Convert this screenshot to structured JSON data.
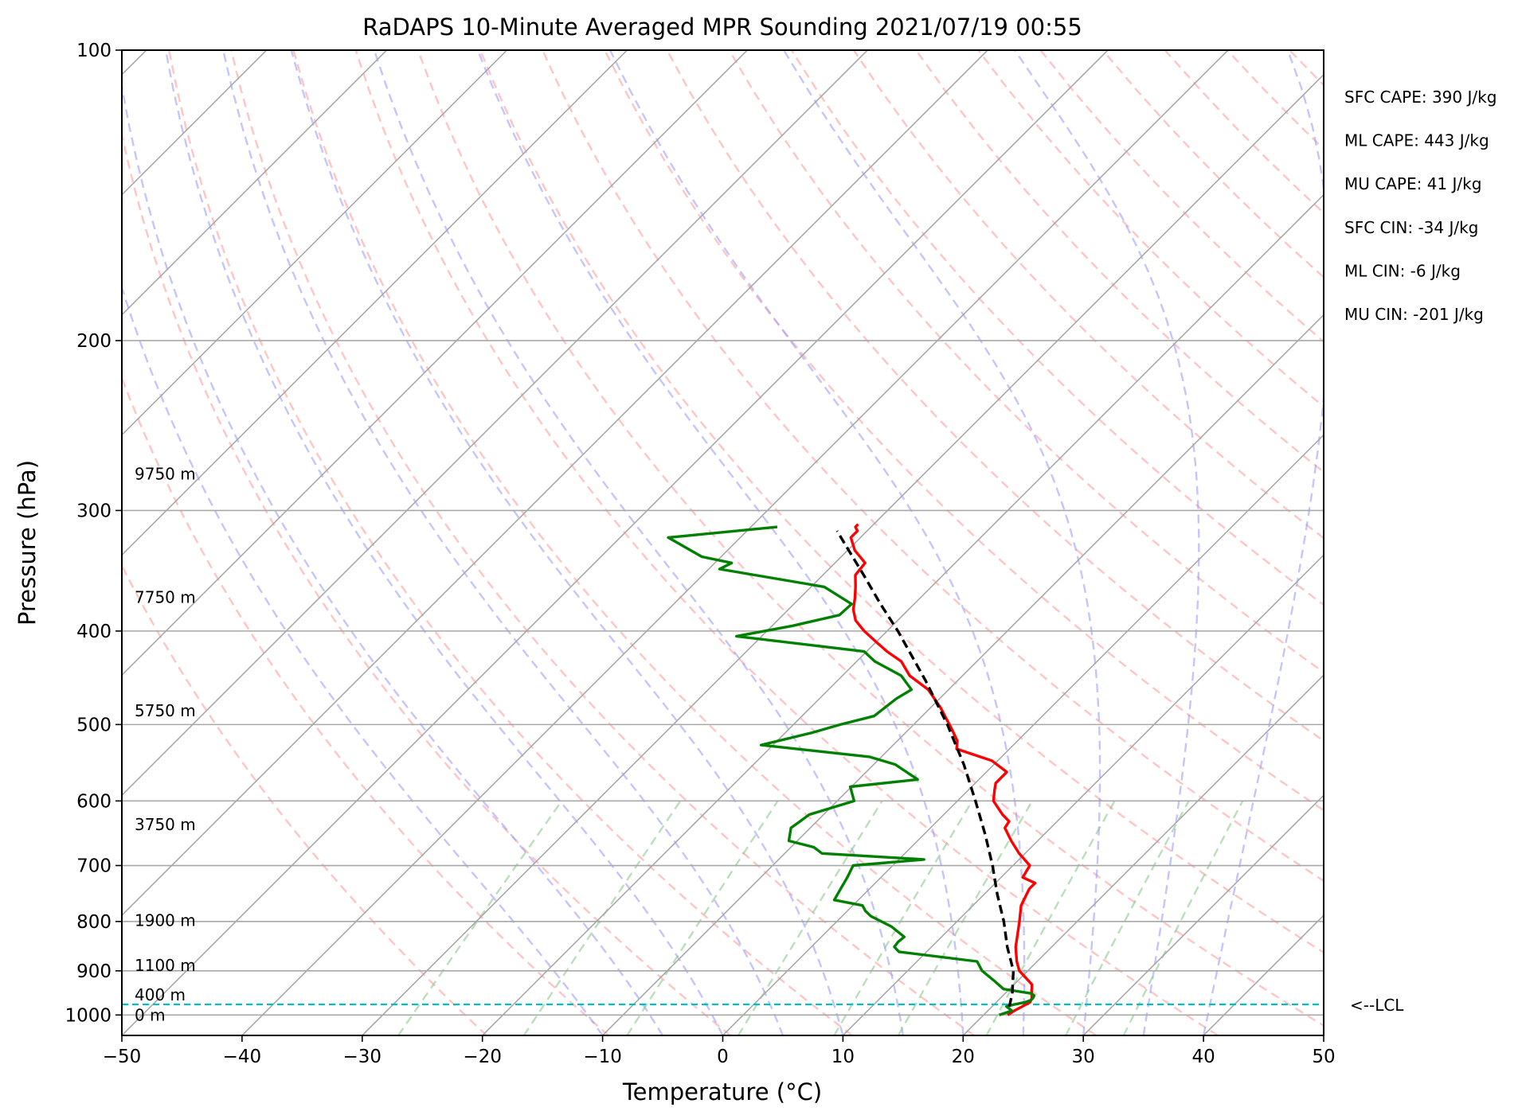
{
  "chart_data": {
    "type": "line",
    "title": "RaDAPS 10-Minute Averaged MPR Sounding 2021/07/19 00:55",
    "xlabel": "Temperature (°C)",
    "ylabel": "Pressure (hPa)",
    "xlim": [
      -50,
      50
    ],
    "ylim": [
      1050,
      100
    ],
    "y_scale": "log",
    "grid": true,
    "x_ticks": [
      -50,
      -40,
      -30,
      -20,
      -10,
      0,
      10,
      20,
      30,
      40,
      50
    ],
    "x_tick_labels": [
      "−50",
      "−40",
      "−30",
      "−20",
      "−10",
      "0",
      "10",
      "20",
      "30",
      "40",
      "50"
    ],
    "y_ticks": [
      100,
      200,
      300,
      400,
      500,
      600,
      700,
      800,
      900,
      1000
    ],
    "y_tick_labels": [
      "100",
      "200",
      "300",
      "400",
      "500",
      "600",
      "700",
      "800",
      "900",
      "1000"
    ],
    "series": [
      {
        "role": "temperature",
        "color": "#ff0000",
        "points": [
          [
            1000,
            22.0
          ],
          [
            990,
            22.2
          ],
          [
            980,
            22.5
          ],
          [
            970,
            22.8
          ],
          [
            960,
            22.6
          ],
          [
            950,
            22.2
          ],
          [
            930,
            21.5
          ],
          [
            900,
            19.3
          ],
          [
            880,
            18.3
          ],
          [
            850,
            17.0
          ],
          [
            800,
            15.2
          ],
          [
            770,
            14.0
          ],
          [
            740,
            13.3
          ],
          [
            730,
            13.3
          ],
          [
            720,
            11.8
          ],
          [
            700,
            11.4
          ],
          [
            680,
            9.5
          ],
          [
            660,
            7.8
          ],
          [
            640,
            6.2
          ],
          [
            630,
            6.0
          ],
          [
            620,
            4.9
          ],
          [
            600,
            3.0
          ],
          [
            585,
            2.2
          ],
          [
            575,
            1.7
          ],
          [
            560,
            1.7
          ],
          [
            545,
            -0.5
          ],
          [
            530,
            -4.4
          ],
          [
            520,
            -5.0
          ],
          [
            505,
            -6.5
          ],
          [
            480,
            -9.2
          ],
          [
            460,
            -11.7
          ],
          [
            445,
            -14.4
          ],
          [
            430,
            -16.3
          ],
          [
            420,
            -18.3
          ],
          [
            410,
            -20.1
          ],
          [
            400,
            -21.9
          ],
          [
            390,
            -23.5
          ],
          [
            380,
            -24.6
          ],
          [
            370,
            -25.4
          ],
          [
            360,
            -26.3
          ],
          [
            350,
            -27.3
          ],
          [
            340,
            -27.5
          ],
          [
            330,
            -29.4
          ],
          [
            320,
            -30.8
          ],
          [
            315,
            -30.8
          ],
          [
            312,
            -31.3
          ],
          [
            310,
            -31.3
          ]
        ]
      },
      {
        "role": "dewpoint",
        "color": "#008000",
        "points": [
          [
            1000,
            21.3
          ],
          [
            990,
            22.0
          ],
          [
            980,
            21.2
          ],
          [
            975,
            21.7
          ],
          [
            970,
            22.4
          ],
          [
            965,
            22.7
          ],
          [
            960,
            22.7
          ],
          [
            955,
            22.6
          ],
          [
            950,
            22.2
          ],
          [
            940,
            19.5
          ],
          [
            920,
            17.9
          ],
          [
            900,
            16.2
          ],
          [
            880,
            15.0
          ],
          [
            860,
            7.7
          ],
          [
            850,
            6.9
          ],
          [
            840,
            6.8
          ],
          [
            830,
            6.9
          ],
          [
            810,
            5.0
          ],
          [
            790,
            2.4
          ],
          [
            780,
            1.5
          ],
          [
            770,
            0.8
          ],
          [
            760,
            -2.0
          ],
          [
            740,
            -2.4
          ],
          [
            720,
            -2.8
          ],
          [
            700,
            -3.3
          ],
          [
            690,
            2.1
          ],
          [
            680,
            -6.9
          ],
          [
            670,
            -8.1
          ],
          [
            660,
            -10.7
          ],
          [
            640,
            -11.6
          ],
          [
            630,
            -11.4
          ],
          [
            620,
            -11.2
          ],
          [
            600,
            -8.6
          ],
          [
            580,
            -10.1
          ],
          [
            570,
            -5.1
          ],
          [
            550,
            -8.2
          ],
          [
            540,
            -11.0
          ],
          [
            525,
            -21.0
          ],
          [
            510,
            -17.8
          ],
          [
            500,
            -16.1
          ],
          [
            490,
            -14.0
          ],
          [
            470,
            -13.6
          ],
          [
            460,
            -13.1
          ],
          [
            445,
            -15.1
          ],
          [
            430,
            -18.5
          ],
          [
            420,
            -20.2
          ],
          [
            405,
            -32.1
          ],
          [
            395,
            -28.3
          ],
          [
            385,
            -25.3
          ],
          [
            375,
            -25.2
          ],
          [
            360,
            -28.9
          ],
          [
            345,
            -39.1
          ],
          [
            340,
            -38.6
          ],
          [
            335,
            -41.6
          ],
          [
            320,
            -46.0
          ],
          [
            312,
            -37.8
          ]
        ]
      },
      {
        "role": "parcel",
        "color": "#000000",
        "points": [
          [
            980,
            21.4
          ],
          [
            975,
            21.3
          ],
          [
            950,
            20.6
          ],
          [
            900,
            18.8
          ],
          [
            850,
            16.3
          ],
          [
            800,
            13.9
          ],
          [
            750,
            11.1
          ],
          [
            700,
            8.3
          ],
          [
            650,
            5.1
          ],
          [
            600,
            1.5
          ],
          [
            550,
            -2.5
          ],
          [
            500,
            -7.2
          ],
          [
            450,
            -12.7
          ],
          [
            400,
            -19.1
          ],
          [
            375,
            -22.8
          ],
          [
            350,
            -26.6
          ],
          [
            330,
            -29.9
          ],
          [
            315,
            -32.5
          ]
        ]
      }
    ],
    "lcl": {
      "pressure": 975,
      "label": "<--LCL",
      "color": "#00bfbf"
    },
    "height_labels": [
      {
        "pressure": 1000,
        "label": "0 m"
      },
      {
        "pressure": 953,
        "label": "400 m"
      },
      {
        "pressure": 888,
        "label": "1100 m"
      },
      {
        "pressure": 798,
        "label": "1900 m"
      },
      {
        "pressure": 635,
        "label": "3750 m"
      },
      {
        "pressure": 484,
        "label": "5750 m"
      },
      {
        "pressure": 369,
        "label": "7750 m"
      },
      {
        "pressure": 275,
        "label": "9750 m"
      }
    ],
    "annotations": [
      "SFC CAPE: 390 J/kg",
      "ML CAPE: 443 J/kg",
      "MU CAPE: 41 J/kg",
      "SFC CIN: -34 J/kg",
      "ML CIN: -6 J/kg",
      "MU CIN: -201 J/kg"
    ],
    "background_colors": {
      "isotherm": "#a8a8a8",
      "isobar": "#a8a8a8",
      "dry_adiabat": "#ff9c9c",
      "moist_adiabat": "#9c9cff",
      "mixing_ratio": "#8cc88c"
    }
  }
}
